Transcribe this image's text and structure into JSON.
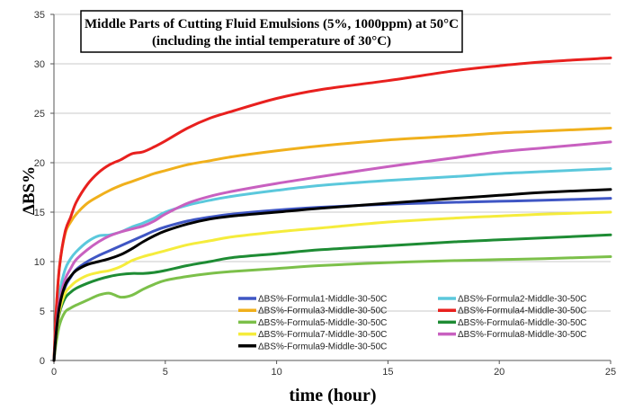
{
  "chart_data": {
    "type": "line",
    "title": [
      "Middle Parts of Cutting Fluid Emulsions (5%, 1000ppm) at 50°C",
      "(including the intial temperature of 30°C)"
    ],
    "xlabel": "time (hour)",
    "ylabel": "ΔBS%",
    "xlim": [
      0,
      25
    ],
    "ylim": [
      0,
      35
    ],
    "xticks": [
      0,
      5,
      10,
      15,
      20,
      25
    ],
    "yticks": [
      0,
      5,
      10,
      15,
      20,
      25,
      30,
      35
    ],
    "grid": "horizontal",
    "legend_position": "bottom-right",
    "series": [
      {
        "name": "ΔBS%-Formula1-Middle-30-50C",
        "color": "#3f56c4",
        "x": [
          0,
          0.1,
          0.25,
          0.5,
          0.75,
          1,
          1.5,
          2,
          2.5,
          3,
          3.5,
          4,
          4.5,
          5,
          6,
          7,
          8,
          10,
          12,
          15,
          18,
          20,
          22,
          25
        ],
        "y": [
          0,
          2.5,
          5.2,
          7.4,
          8.4,
          9.2,
          10,
          10.6,
          11.1,
          11.6,
          12.1,
          12.6,
          13.1,
          13.5,
          14.1,
          14.5,
          14.8,
          15.2,
          15.5,
          15.8,
          16.0,
          16.1,
          16.2,
          16.4
        ]
      },
      {
        "name": "ΔBS%-Formula2-Middle-30-50C",
        "color": "#5bc8dc",
        "x": [
          0,
          0.1,
          0.25,
          0.5,
          0.75,
          1,
          1.5,
          2,
          2.5,
          3,
          3.5,
          4,
          4.5,
          5,
          6,
          7,
          8,
          10,
          12,
          15,
          18,
          20,
          22,
          25
        ],
        "y": [
          0,
          3.5,
          6.8,
          9.2,
          10.3,
          11.0,
          12.0,
          12.6,
          12.7,
          13.0,
          13.5,
          13.9,
          14.4,
          15.0,
          15.7,
          16.2,
          16.6,
          17.2,
          17.7,
          18.2,
          18.6,
          18.9,
          19.1,
          19.4
        ]
      },
      {
        "name": "ΔBS%-Formula3-Middle-30-50C",
        "color": "#f0b01c",
        "x": [
          0,
          0.1,
          0.25,
          0.5,
          0.75,
          1,
          1.5,
          2,
          2.5,
          3,
          3.5,
          4,
          4.5,
          5,
          6,
          7,
          8,
          10,
          12,
          15,
          18,
          20,
          22,
          25
        ],
        "y": [
          0,
          5,
          9.5,
          12.8,
          14.0,
          14.8,
          15.9,
          16.6,
          17.2,
          17.7,
          18.1,
          18.5,
          18.9,
          19.2,
          19.8,
          20.2,
          20.6,
          21.2,
          21.7,
          22.3,
          22.7,
          23.0,
          23.2,
          23.5
        ]
      },
      {
        "name": "ΔBS%-Formula4-Middle-30-50C",
        "color": "#e8201e",
        "x": [
          0,
          0.1,
          0.25,
          0.5,
          0.75,
          1,
          1.5,
          2,
          2.5,
          3,
          3.5,
          4,
          4.5,
          5,
          6,
          7,
          8,
          10,
          12,
          15,
          18,
          20,
          22,
          25
        ],
        "y": [
          0,
          5,
          9.5,
          13.0,
          14.5,
          16.0,
          17.8,
          19.0,
          19.8,
          20.3,
          20.9,
          21.1,
          21.6,
          22.2,
          23.5,
          24.5,
          25.2,
          26.5,
          27.4,
          28.3,
          29.3,
          29.8,
          30.2,
          30.6
        ]
      },
      {
        "name": "ΔBS%-Formula5-Middle-30-50C",
        "color": "#7cc04a",
        "x": [
          0,
          0.1,
          0.25,
          0.5,
          0.75,
          1,
          1.5,
          2,
          2.5,
          3,
          3.5,
          4,
          4.5,
          5,
          6,
          7,
          8,
          10,
          12,
          15,
          18,
          20,
          22,
          25
        ],
        "y": [
          0,
          1.8,
          3.6,
          4.9,
          5.3,
          5.6,
          6.1,
          6.6,
          6.8,
          6.4,
          6.6,
          7.2,
          7.7,
          8.1,
          8.5,
          8.8,
          9.0,
          9.3,
          9.6,
          9.9,
          10.1,
          10.2,
          10.3,
          10.5
        ]
      },
      {
        "name": "ΔBS%-Formula6-Middle-30-50C",
        "color": "#1e8c34",
        "x": [
          0,
          0.1,
          0.25,
          0.5,
          0.75,
          1,
          1.5,
          2,
          2.5,
          3,
          3.5,
          4,
          4.5,
          5,
          6,
          7,
          8,
          10,
          12,
          15,
          18,
          20,
          22,
          25
        ],
        "y": [
          0,
          2.5,
          4.8,
          6.3,
          6.9,
          7.3,
          7.8,
          8.2,
          8.5,
          8.7,
          8.8,
          8.8,
          8.9,
          9.1,
          9.6,
          10.0,
          10.4,
          10.8,
          11.2,
          11.6,
          12.0,
          12.2,
          12.4,
          12.7
        ]
      },
      {
        "name": "ΔBS%-Formula7-Middle-30-50C",
        "color": "#f5ec3c",
        "x": [
          0,
          0.1,
          0.25,
          0.5,
          0.75,
          1,
          1.5,
          2,
          2.5,
          3,
          3.5,
          4,
          4.5,
          5,
          6,
          7,
          8,
          10,
          12,
          15,
          18,
          20,
          22,
          25
        ],
        "y": [
          0,
          2.5,
          5.0,
          6.8,
          7.5,
          8.0,
          8.6,
          8.9,
          9.1,
          9.5,
          10.1,
          10.5,
          10.8,
          11.1,
          11.7,
          12.1,
          12.5,
          13.0,
          13.4,
          14.0,
          14.4,
          14.6,
          14.8,
          15.0
        ]
      },
      {
        "name": "ΔBS%-Formula8-Middle-30-50C",
        "color": "#c860c0",
        "x": [
          0,
          0.1,
          0.25,
          0.5,
          0.75,
          1,
          1.5,
          2,
          2.5,
          3,
          3.5,
          4,
          4.5,
          5,
          6,
          7,
          8,
          10,
          12,
          15,
          18,
          20,
          22,
          25
        ],
        "y": [
          0,
          3,
          6.0,
          8.2,
          9.3,
          10.2,
          11.2,
          12.0,
          12.6,
          13.0,
          13.3,
          13.6,
          14.1,
          14.8,
          15.9,
          16.6,
          17.1,
          17.9,
          18.6,
          19.6,
          20.5,
          21.1,
          21.5,
          22.1
        ]
      },
      {
        "name": "ΔBS%-Formula9-Middle-30-50C",
        "color": "#000000",
        "x": [
          0,
          0.1,
          0.25,
          0.5,
          0.75,
          1,
          1.5,
          2,
          2.5,
          3,
          3.5,
          4,
          4.5,
          5,
          6,
          7,
          8,
          10,
          12,
          15,
          18,
          20,
          22,
          25
        ],
        "y": [
          0,
          2.8,
          5.5,
          7.6,
          8.5,
          9.1,
          9.7,
          10.0,
          10.3,
          10.7,
          11.3,
          12.0,
          12.6,
          13.1,
          13.8,
          14.3,
          14.6,
          15.0,
          15.4,
          15.9,
          16.4,
          16.7,
          17.0,
          17.3
        ]
      }
    ],
    "legend_order": [
      0,
      1,
      2,
      3,
      4,
      5,
      6,
      7,
      8
    ]
  }
}
